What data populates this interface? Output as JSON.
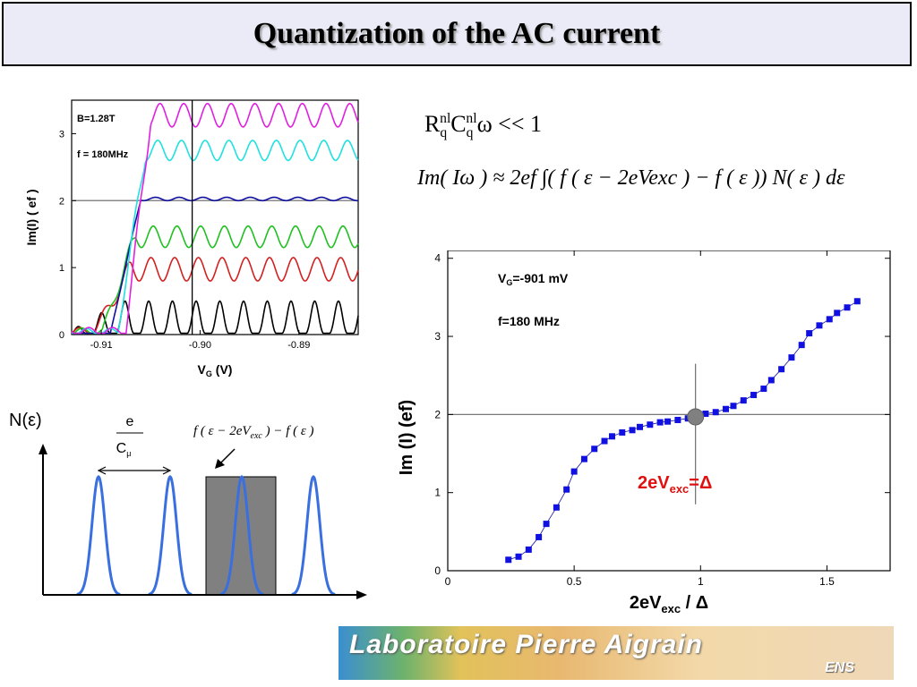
{
  "title": "Quantization of the AC current",
  "formula1": {
    "R": "R",
    "R_sup": "nl",
    "R_sub": "q",
    "C": "C",
    "C_sup": "nl",
    "C_sub": "q",
    "rest": "ω << 1"
  },
  "formula2": "Im( Iω ) ≈ 2ef ∫( f ( ε − 2eVexc ) − f ( ε )) N( ε ) dε",
  "chart_data": [
    {
      "type": "line",
      "xlabel": "VG (V)",
      "ylabel": "Im(I) ( ef )",
      "xlim": [
        -0.913,
        -0.884
      ],
      "ylim": [
        0,
        3.5
      ],
      "xticks": [
        -0.91,
        -0.9,
        -0.89
      ],
      "xtick_labels": [
        "-0.91",
        "-0.90",
        "-0.89"
      ],
      "yticks": [
        0,
        1,
        2,
        3
      ],
      "ytick_labels": [
        "0",
        "1",
        "2",
        "3"
      ],
      "annotations": [
        "B=1.28T",
        "f = 180MHz"
      ],
      "hline": 2,
      "vline": -0.9008,
      "series": [
        {
          "color": "#000000",
          "plateau": 0,
          "amplitude": 0.5
        },
        {
          "color": "#d42020",
          "plateau": 0.8,
          "amplitude": 0.35
        },
        {
          "color": "#20c020",
          "plateau": 1.3,
          "amplitude": 0.32
        },
        {
          "color": "#1010a0",
          "plateau": 2.0,
          "amplitude": 0.05
        },
        {
          "color": "#20e0e0",
          "plateau": 2.6,
          "amplitude": 0.3
        },
        {
          "color": "#e020e0",
          "plateau": 3.1,
          "amplitude": 0.35
        }
      ]
    },
    {
      "type": "scatter",
      "xlabel": "2eVexc / Δ",
      "ylabel": "Im (I) (ef)",
      "xlim": [
        0,
        1.75
      ],
      "ylim": [
        0,
        4.1
      ],
      "xticks": [
        0,
        0.5,
        1,
        1.5
      ],
      "xtick_labels": [
        "0",
        "0.5",
        "1",
        "1.5"
      ],
      "yticks": [
        0,
        1,
        2,
        3,
        4
      ],
      "ytick_labels": [
        "0",
        "1",
        "2",
        "3",
        "4"
      ],
      "annotations": [
        "VG=-901 mV",
        "f=180 MHz",
        "2eVexc=Δ"
      ],
      "hline": 2,
      "vline": 0.98,
      "highlight_point": {
        "x": 0.98,
        "y": 1.97
      },
      "x": [
        0.24,
        0.28,
        0.32,
        0.36,
        0.39,
        0.43,
        0.47,
        0.5,
        0.54,
        0.58,
        0.62,
        0.65,
        0.69,
        0.73,
        0.76,
        0.8,
        0.84,
        0.87,
        0.91,
        0.95,
        0.98,
        1.02,
        1.06,
        1.1,
        1.13,
        1.17,
        1.21,
        1.25,
        1.28,
        1.32,
        1.36,
        1.4,
        1.43,
        1.47,
        1.51,
        1.54,
        1.58,
        1.62
      ],
      "y": [
        0.14,
        0.18,
        0.27,
        0.43,
        0.6,
        0.81,
        1.04,
        1.27,
        1.43,
        1.56,
        1.66,
        1.72,
        1.77,
        1.8,
        1.84,
        1.87,
        1.9,
        1.91,
        1.93,
        1.95,
        1.98,
        2.01,
        2.03,
        2.07,
        2.11,
        2.18,
        2.25,
        2.33,
        2.44,
        2.58,
        2.73,
        2.89,
        3.04,
        3.14,
        3.22,
        3.3,
        3.37,
        3.45
      ],
      "color": "#1010e0"
    },
    {
      "type": "diagram",
      "ylabel": "N(ε)",
      "spacing_num": "e",
      "spacing_den": "Cμ",
      "window_label": "f ( ε − 2eVexc ) − f ( ε )"
    }
  ],
  "banner": {
    "text": "Laboratoire Pierre Aigrain",
    "sub": "ENS"
  }
}
